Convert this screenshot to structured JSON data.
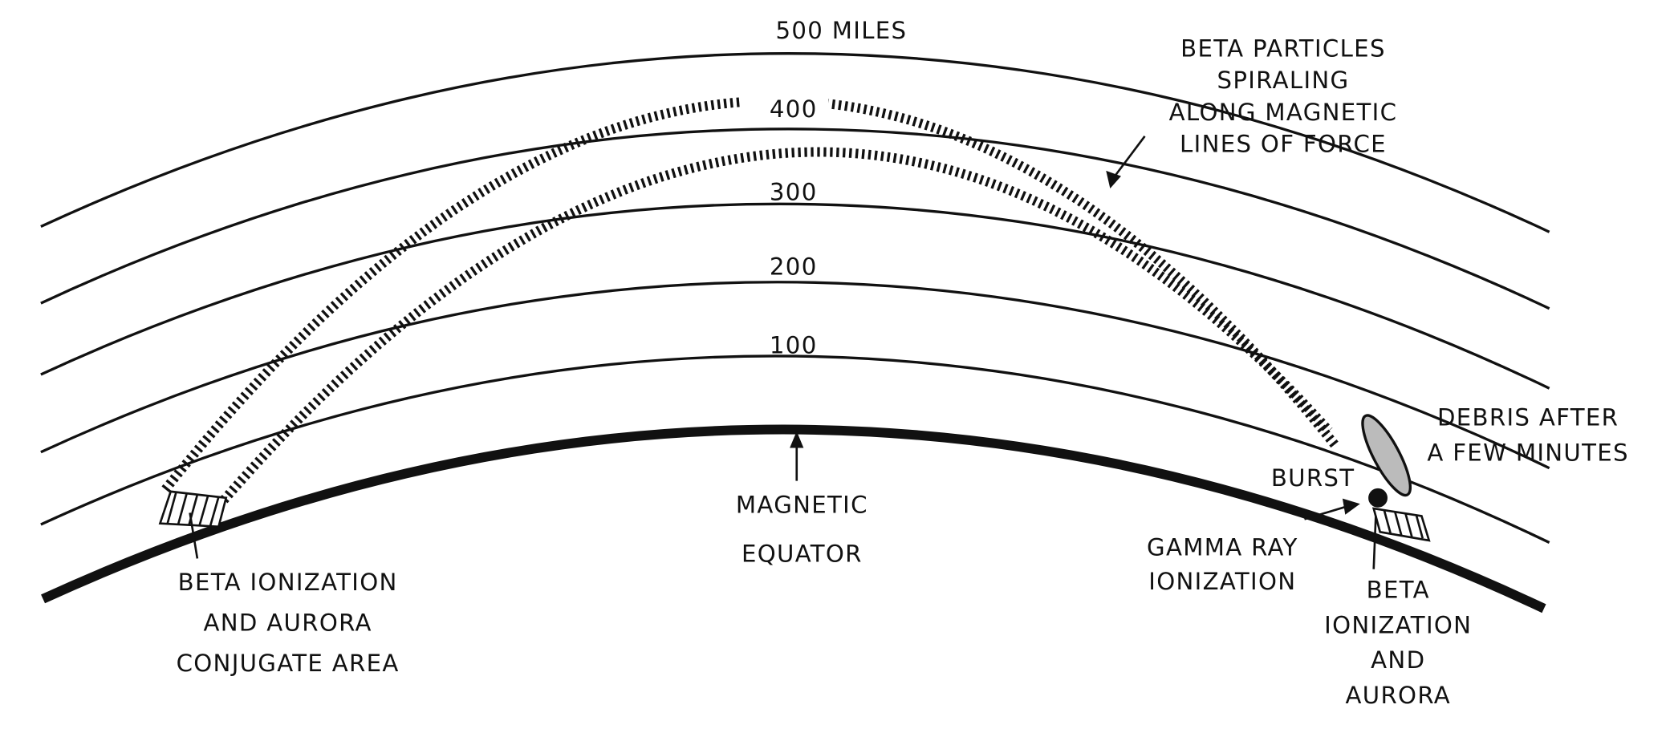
{
  "altitude_labels": {
    "top": "500 MILES",
    "l400": "400",
    "l300": "300",
    "l200": "200",
    "l100": "100"
  },
  "annotations": {
    "beta_particles": [
      "BETA PARTICLES",
      "SPIRALING",
      "ALONG MAGNETIC",
      "LINES OF FORCE"
    ],
    "debris": [
      "DEBRIS AFTER",
      "A FEW MINUTES"
    ],
    "burst": "BURST",
    "equator": [
      "MAGNETIC",
      "EQUATOR"
    ],
    "gamma": [
      "GAMMA RAY",
      "IONIZATION"
    ],
    "beta_local": [
      "BETA",
      "IONIZATION",
      "AND",
      "AURORA"
    ],
    "conjugate": [
      "BETA IONIZATION",
      "AND AURORA",
      "CONJUGATE AREA"
    ]
  }
}
